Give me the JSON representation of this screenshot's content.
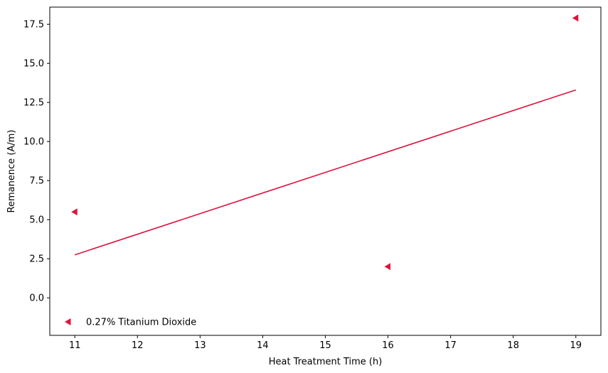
{
  "chart_data": {
    "type": "scatter",
    "xlabel": "Heat Treatment Time (h)",
    "ylabel": "Remanence (A/m)",
    "xlim": [
      10.6,
      19.4
    ],
    "ylim": [
      -2.4,
      18.6
    ],
    "x_ticks": [
      11,
      12,
      13,
      14,
      15,
      16,
      17,
      18,
      19
    ],
    "x_tick_labels": [
      "11",
      "12",
      "13",
      "14",
      "15",
      "16",
      "17",
      "18",
      "19"
    ],
    "y_ticks": [
      0.0,
      2.5,
      5.0,
      7.5,
      10.0,
      12.5,
      15.0,
      17.5
    ],
    "y_tick_labels": [
      "0.0",
      "2.5",
      "5.0",
      "7.5",
      "10.0",
      "12.5",
      "15.0",
      "17.5"
    ],
    "grid": false,
    "legend_position": "lower-left",
    "series": [
      {
        "name": "0.27% Titanium Dioxide",
        "marker": "triangle-left",
        "color": "#dc143c",
        "x": [
          11,
          16,
          19
        ],
        "y": [
          5.5,
          2.0,
          17.9
        ]
      }
    ],
    "trend_line": {
      "color": "#dc143c",
      "x": [
        11,
        19
      ],
      "y": [
        2.75,
        13.3
      ]
    }
  }
}
